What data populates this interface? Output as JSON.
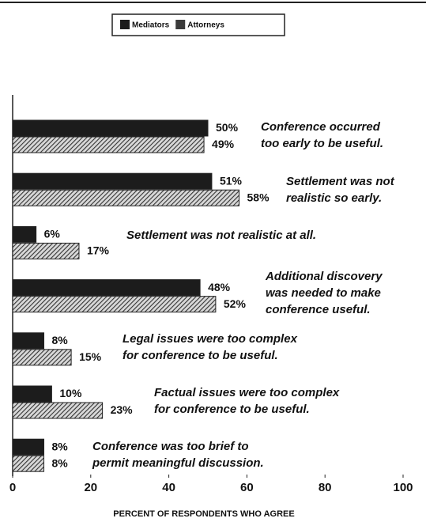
{
  "chart_data": {
    "type": "barh",
    "xlabel": "PERCENT OF RESPONDENTS WHO AGREE",
    "categories": [
      [
        "Conference occurred",
        "too early to be useful."
      ],
      [
        "Settlement was not",
        "realistic so early."
      ],
      [
        "Settlement was not realistic at all."
      ],
      [
        "Additional discovery",
        "was needed to make",
        "conference useful."
      ],
      [
        "Legal issues were too complex",
        "for conference to be useful."
      ],
      [
        "Factual issues were too complex",
        "for conference to be useful."
      ],
      [
        "Conference was too brief to",
        "permit meaningful discussion."
      ]
    ],
    "series": [
      {
        "name": "Mediators",
        "color": "#1c1c1c",
        "values": [
          50,
          51,
          6,
          48,
          8,
          10,
          8
        ],
        "value_labels": [
          "50%",
          "51%",
          "6%",
          "48%",
          "8%",
          "10%",
          "8%"
        ]
      },
      {
        "name": "Attorneys",
        "color": "#3a3a3a",
        "hatch": true,
        "values": [
          49,
          58,
          17,
          52,
          15,
          23,
          8
        ],
        "value_labels": [
          "49%",
          "58%",
          "17%",
          "52%",
          "15%",
          "23%",
          "8%"
        ]
      }
    ],
    "xlim": [
      0,
      100
    ],
    "xticks": [
      0,
      20,
      40,
      60,
      80,
      100
    ]
  }
}
